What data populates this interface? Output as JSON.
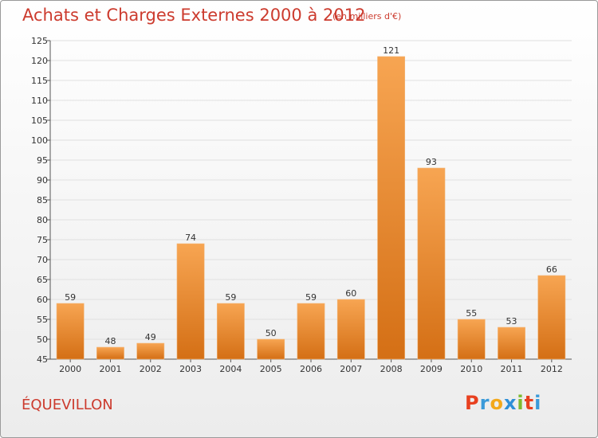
{
  "page": {
    "title": "Achats et Charges Externes 2000 à 2012",
    "subtitle": "(en milliers d'€)",
    "commune": "ÉQUEVILLON",
    "logo": "Proxiti"
  },
  "colors": {
    "bar_light": "#f7a552",
    "bar_dark": "#d46f15",
    "title": "#cc3b2e",
    "grid": "#e0e0e0"
  },
  "chart_data": {
    "type": "bar",
    "title": "Achats et Charges Externes 2000 à 2012",
    "subtitle": "(en milliers d'€)",
    "categories": [
      "2000",
      "2001",
      "2002",
      "2003",
      "2004",
      "2005",
      "2006",
      "2007",
      "2008",
      "2009",
      "2010",
      "2011",
      "2012"
    ],
    "values": [
      59,
      48,
      49,
      74,
      59,
      50,
      59,
      60,
      121,
      93,
      55,
      53,
      66
    ],
    "ylim": [
      45,
      125
    ],
    "yticks": [
      45,
      50,
      55,
      60,
      65,
      70,
      75,
      80,
      85,
      90,
      95,
      100,
      105,
      110,
      115,
      120,
      125
    ],
    "grid": true,
    "legend": "none"
  }
}
